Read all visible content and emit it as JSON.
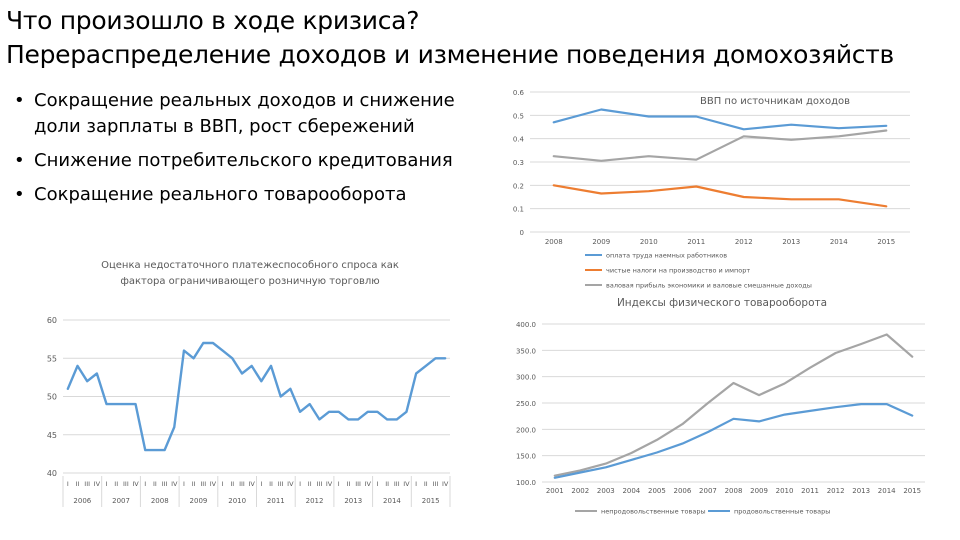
{
  "slide": {
    "title_line1": "Что произошло в ходе кризиса?",
    "title_line2": "Перераспределение доходов и изменение поведения домохозяйств",
    "bullets": [
      "Сокращение реальных доходов и снижение доли зарплаты в ВВП, рост сбережений",
      "Снижение потребительского кредитования",
      "Сокращение реального товарооборота"
    ]
  },
  "chart_data": [
    {
      "type": "line",
      "title": "ВВП по источникам доходов",
      "x": [
        "2008",
        "2009",
        "2010",
        "2011",
        "2012",
        "2013",
        "2014",
        "2015"
      ],
      "ylim": [
        0,
        0.6
      ],
      "yticks": [
        "0",
        "0.1",
        "0.2",
        "0.3",
        "0.4",
        "0.5",
        "0.6"
      ],
      "grid": true,
      "legend": "bottom",
      "series": [
        {
          "name": "оплата труда наемных работников",
          "color": "#5b9bd5",
          "values": [
            0.47,
            0.525,
            0.495,
            0.495,
            0.44,
            0.46,
            0.445,
            0.455
          ]
        },
        {
          "name": "чистые налоги на производство и импорт",
          "color": "#ed7d31",
          "values": [
            0.2,
            0.165,
            0.175,
            0.195,
            0.15,
            0.14,
            0.14,
            0.11
          ]
        },
        {
          "name": "валовая прибыль экономики и валовые смешанные доходы",
          "color": "#a5a5a5",
          "values": [
            0.325,
            0.305,
            0.325,
            0.31,
            0.41,
            0.395,
            0.41,
            0.435
          ]
        }
      ]
    },
    {
      "type": "line",
      "title": "Оценка недостаточного платежеспособного спроса как фактора ограничивающего розничную торговлю",
      "ylim": [
        40,
        60
      ],
      "yticks": [
        "40",
        "45",
        "50",
        "55",
        "60"
      ],
      "quarter_labels": [
        "I",
        "II",
        "III",
        "IV"
      ],
      "years": [
        "2006",
        "2007",
        "2008",
        "2009",
        "2010",
        "2011",
        "2012",
        "2013",
        "2014",
        "2015"
      ],
      "grid": true,
      "series": [
        {
          "color": "#5b9bd5",
          "values": [
            51,
            54,
            52,
            53,
            49,
            49,
            49,
            49,
            43,
            43,
            43,
            46,
            56,
            55,
            57,
            57,
            56,
            55,
            53,
            54,
            52,
            54,
            50,
            51,
            48,
            49,
            47,
            48,
            48,
            47,
            47,
            48,
            48,
            47,
            47,
            48,
            53,
            54,
            55,
            55
          ]
        }
      ]
    },
    {
      "type": "line",
      "title": "Индексы физического товарооборота",
      "x": [
        "2001",
        "2002",
        "2003",
        "2004",
        "2005",
        "2006",
        "2007",
        "2008",
        "2009",
        "2010",
        "2011",
        "2012",
        "2013",
        "2014",
        "2015"
      ],
      "ylim": [
        100,
        400
      ],
      "yticks": [
        "100.0",
        "150.0",
        "200.0",
        "250.0",
        "300.0",
        "350.0",
        "400.0"
      ],
      "grid": true,
      "legend": "bottom",
      "series": [
        {
          "name": "непродовольственные товары",
          "color": "#a5a5a5",
          "values": [
            112,
            122,
            135,
            155,
            180,
            210,
            250,
            288,
            265,
            287,
            317,
            345,
            362,
            380,
            338
          ]
        },
        {
          "name": "продовольственные товары",
          "color": "#5b9bd5",
          "values": [
            108,
            118,
            128,
            142,
            156,
            173,
            195,
            220,
            215,
            228,
            235,
            242,
            248,
            248,
            226
          ]
        }
      ]
    }
  ]
}
